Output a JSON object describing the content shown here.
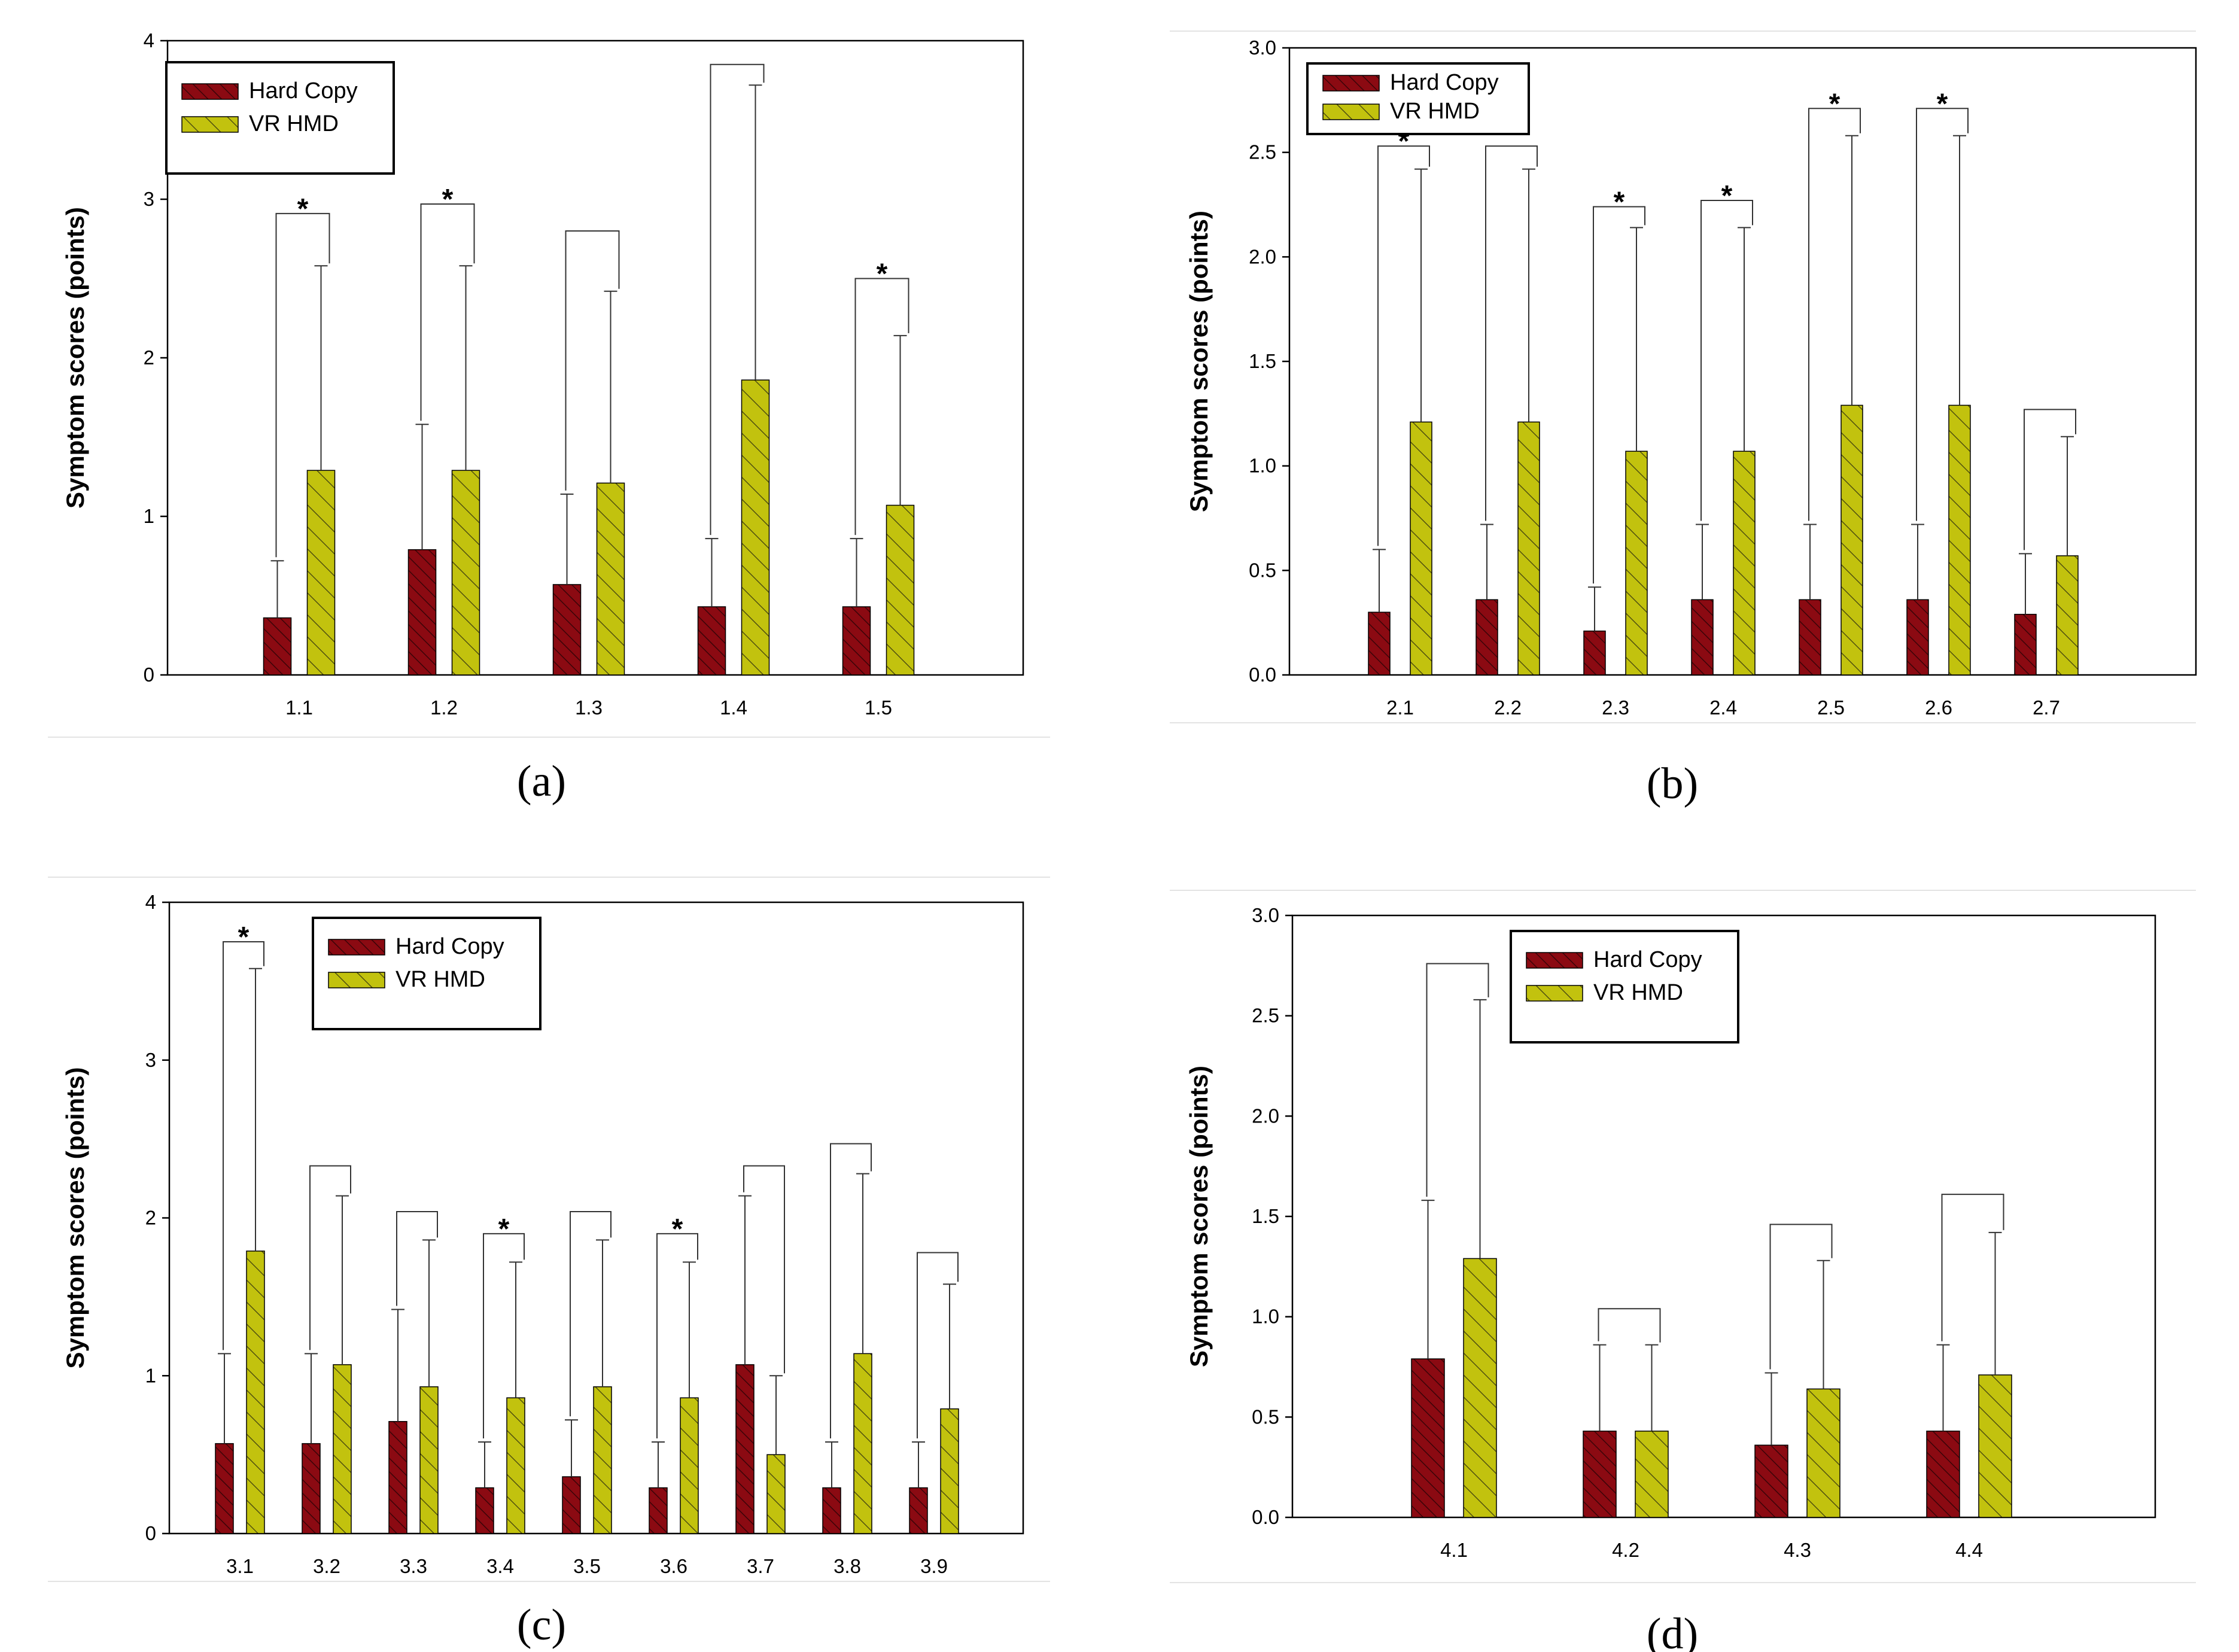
{
  "colors": {
    "hard_copy": "#8b0a12",
    "vr_hmd": "#c2c20e",
    "hatch": "#2b2b2b",
    "axis": "#000000"
  },
  "chart_data": [
    {
      "type": "bar",
      "panel": "a",
      "caption": "(a)",
      "ylabel": "Symptom scores (points)",
      "xlabel": "",
      "ylim": [
        0,
        4
      ],
      "yticks": [
        "0",
        "1",
        "2",
        "3",
        "4"
      ],
      "categories": [
        "1.1",
        "1.2",
        "1.3",
        "1.4",
        "1.5"
      ],
      "legend_position": "top-left",
      "series": [
        {
          "name": "Hard Copy",
          "values": [
            0.36,
            0.79,
            0.57,
            0.43,
            0.43
          ],
          "error": [
            0.36,
            0.79,
            0.57,
            0.43,
            0.43
          ]
        },
        {
          "name": "VR HMD",
          "values": [
            1.29,
            1.29,
            1.21,
            1.86,
            1.07
          ],
          "error": [
            1.29,
            1.29,
            1.21,
            1.86,
            1.07
          ]
        }
      ],
      "bracket_tops": [
        2.91,
        2.97,
        2.8,
        3.85,
        2.5
      ],
      "significant": [
        true,
        true,
        false,
        false,
        true
      ]
    },
    {
      "type": "bar",
      "panel": "b",
      "caption": "(b)",
      "ylabel": "Symptom scores (points)",
      "xlabel": "",
      "ylim": [
        0,
        3
      ],
      "yticks": [
        "0.0",
        "0.5",
        "1.0",
        "1.5",
        "2.0",
        "2.5",
        "3.0"
      ],
      "categories": [
        "2.1",
        "2.2",
        "2.3",
        "2.4",
        "2.5",
        "2.6",
        "2.7"
      ],
      "legend_position": "top-left",
      "series": [
        {
          "name": "Hard Copy",
          "values": [
            0.3,
            0.36,
            0.21,
            0.36,
            0.36,
            0.36,
            0.29
          ],
          "error": [
            0.3,
            0.36,
            0.21,
            0.36,
            0.36,
            0.36,
            0.29
          ]
        },
        {
          "name": "VR HMD",
          "values": [
            1.21,
            1.21,
            1.07,
            1.07,
            1.29,
            1.29,
            0.57
          ],
          "error": [
            1.21,
            1.21,
            1.07,
            1.07,
            1.29,
            1.29,
            0.57
          ]
        }
      ],
      "bracket_tops": [
        2.53,
        2.53,
        2.24,
        2.27,
        2.71,
        2.71,
        1.27
      ],
      "significant": [
        true,
        false,
        true,
        true,
        true,
        true,
        false
      ]
    },
    {
      "type": "bar",
      "panel": "c",
      "caption": "(c)",
      "ylabel": "Symptom scores (points)",
      "xlabel": "",
      "ylim": [
        0,
        4
      ],
      "yticks": [
        "0",
        "1",
        "2",
        "3",
        "4"
      ],
      "categories": [
        "3.1",
        "3.2",
        "3.3",
        "3.4",
        "3.5",
        "3.6",
        "3.7",
        "3.8",
        "3.9"
      ],
      "legend_position": "top-center",
      "series": [
        {
          "name": "Hard Copy",
          "values": [
            0.57,
            0.57,
            0.71,
            0.29,
            0.36,
            0.29,
            1.07,
            0.29,
            0.29
          ],
          "error": [
            0.57,
            0.57,
            0.71,
            0.29,
            0.36,
            0.29,
            1.07,
            0.29,
            0.29
          ]
        },
        {
          "name": "VR HMD",
          "values": [
            1.79,
            1.07,
            0.93,
            0.86,
            0.93,
            0.86,
            0.5,
            1.14,
            0.79
          ],
          "error": [
            1.79,
            1.07,
            0.93,
            0.86,
            0.93,
            0.86,
            0.5,
            1.14,
            0.79
          ]
        }
      ],
      "bracket_tops": [
        3.75,
        2.33,
        2.04,
        1.9,
        2.04,
        1.9,
        2.33,
        2.47,
        1.78
      ],
      "significant": [
        true,
        false,
        false,
        true,
        false,
        true,
        false,
        false,
        false
      ]
    },
    {
      "type": "bar",
      "panel": "d",
      "caption": "(d)",
      "ylabel": "Symptom scores (points)",
      "xlabel": "",
      "ylim": [
        0,
        3
      ],
      "yticks": [
        "0.0",
        "0.5",
        "1.0",
        "1.5",
        "2.0",
        "2.5",
        "3.0"
      ],
      "categories": [
        "4.1",
        "4.2",
        "4.3",
        "4.4"
      ],
      "legend_position": "top-center",
      "series": [
        {
          "name": "Hard Copy",
          "values": [
            0.79,
            0.43,
            0.36,
            0.43
          ],
          "error": [
            0.79,
            0.43,
            0.36,
            0.43
          ]
        },
        {
          "name": "VR HMD",
          "values": [
            1.29,
            0.43,
            0.64,
            0.71
          ],
          "error": [
            1.29,
            0.43,
            0.64,
            0.71
          ]
        }
      ],
      "bracket_tops": [
        2.76,
        1.04,
        1.46,
        1.61
      ],
      "significant": [
        false,
        false,
        false,
        false
      ]
    }
  ]
}
